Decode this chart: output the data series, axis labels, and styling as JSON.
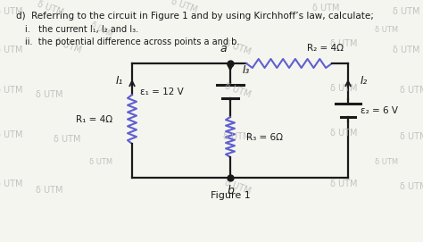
{
  "title_text": "d)  Referring to the circuit in Figure 1 and by using Kirchhoff’s law, calculate;",
  "item_i": "i.   the current I₁, I₂ and I₃.",
  "item_ii": "ii.  the potential difference across points a and b.",
  "figure_label": "Figure 1",
  "point_a": "a",
  "point_b": "b",
  "R1_label": "R₁ = 4Ω",
  "R2_label": "R₂ = 4Ω",
  "R3_label": "R₃ = 6Ω",
  "E1_label": "ε₁ = 12 V",
  "E2_label": "ε₂ = 6 V",
  "I1_label": "I₁",
  "I2_label": "I₂",
  "I3_label": "I₃",
  "bg_color": "#f5f5f0",
  "circuit_color": "#1a1a1a",
  "resistor_color": "#6060d0",
  "text_color": "#1a1a1a",
  "watermark_color": "#b8b8b8",
  "watermark_text": "δ UTM",
  "fig_width": 4.74,
  "fig_height": 2.71,
  "dpi": 100
}
